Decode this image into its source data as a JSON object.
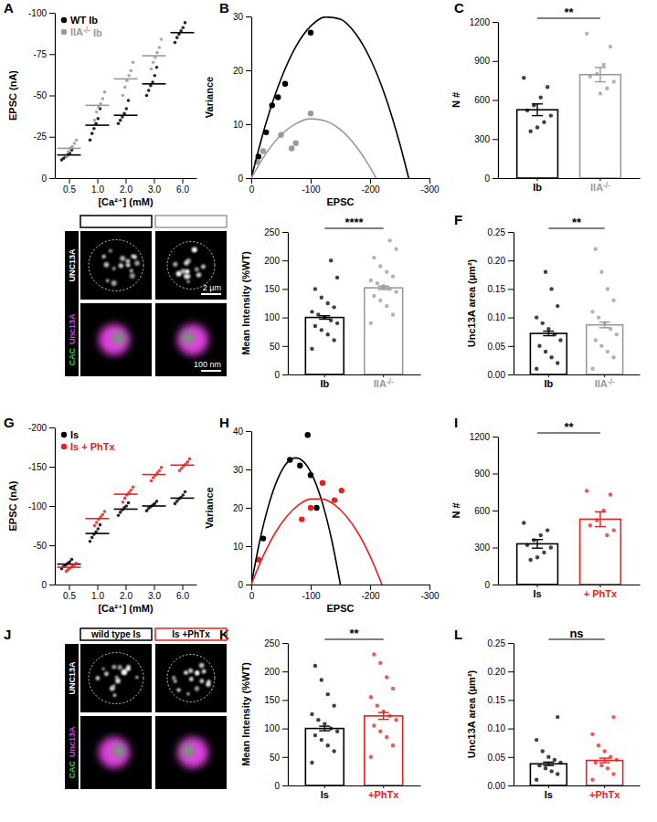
{
  "chart_data": [
    {
      "panel": "A",
      "type": "dot",
      "x_label": "[Ca²⁺] (mM)",
      "y_label": "EPSC (nA)",
      "categories": [
        "0.5",
        "1.0",
        "2.0",
        "3.0",
        "6.0"
      ],
      "ylim": [
        0,
        -100
      ],
      "yticks": [
        0,
        -25,
        -50,
        -75,
        -100
      ],
      "legend": "top-left",
      "series": [
        {
          "name": "WT Ib",
          "color": "#000000",
          "values": [
            -14,
            -32,
            -38,
            -57,
            -88
          ],
          "points": [
            [
              -11,
              -12,
              -13,
              -14,
              -15,
              -17
            ],
            [
              -23,
              -27,
              -30,
              -33,
              -36,
              -42
            ],
            [
              -33,
              -35,
              -37,
              -39,
              -42,
              -47
            ],
            [
              -50,
              -53,
              -56,
              -58,
              -62,
              -67
            ],
            [
              -82,
              -85,
              -87,
              -89,
              -91,
              -94
            ]
          ]
        },
        {
          "name": "IIA-/- Ib",
          "color": "#9a9a9a",
          "values": [
            -18,
            -44,
            -60,
            -74,
            null
          ],
          "points": [
            [
              -13,
              -16,
              -18,
              -19,
              -21,
              -23
            ],
            [
              -35,
              -40,
              -43,
              -45,
              -48,
              -52
            ],
            [
              -50,
              -55,
              -59,
              -62,
              -65,
              -70
            ],
            [
              -66,
              -70,
              -73,
              -76,
              -79,
              -84
            ],
            []
          ]
        }
      ]
    },
    {
      "panel": "B",
      "type": "scatter",
      "x_label": "EPSC",
      "y_label": "Variance",
      "xlim": [
        0,
        -300
      ],
      "xticks": [
        0,
        -100,
        -200,
        -300
      ],
      "ylim": [
        0,
        30
      ],
      "yticks": [
        0,
        10,
        20,
        30
      ],
      "series": [
        {
          "type": "scatter",
          "color": "#000000",
          "x": [
            -12,
            -25,
            -35,
            -45,
            -57,
            -100
          ],
          "values": [
            4,
            8.5,
            13.5,
            15,
            17.5,
            27
          ]
        },
        {
          "type": "scatter",
          "color": "#9a9a9a",
          "x": [
            -10,
            -20,
            -50,
            -68,
            -75,
            -100
          ],
          "values": [
            3,
            5,
            8,
            5.5,
            6.5,
            12
          ]
        },
        {
          "type": "line",
          "color": "#000000",
          "x": [
            0,
            -25,
            -50,
            -75,
            -100,
            -125,
            -150,
            -175,
            -200,
            -225,
            -250,
            -265
          ],
          "values": [
            0,
            10.3,
            18.4,
            24.4,
            28.2,
            29.9,
            29.5,
            26.9,
            22.2,
            15.4,
            6.4,
            0
          ]
        },
        {
          "type": "line",
          "color": "#9a9a9a",
          "x": [
            0,
            -25,
            -50,
            -75,
            -100,
            -125,
            -150,
            -175,
            -200,
            -210
          ],
          "values": [
            0,
            4.6,
            8.0,
            10.1,
            11.0,
            10.6,
            9.0,
            6.1,
            2.0,
            0
          ]
        }
      ]
    },
    {
      "panel": "C",
      "type": "bar",
      "y_label": "N #",
      "categories": [
        "Ib",
        "IIA-/-"
      ],
      "values": [
        525,
        795
      ],
      "errors": [
        45,
        55
      ],
      "colors": [
        "#000000",
        "#9a9a9a"
      ],
      "points": [
        [
          770,
          700,
          620,
          560,
          520,
          480,
          430,
          390,
          360
        ],
        [
          1110,
          1010,
          870,
          800,
          780,
          740,
          690,
          650
        ]
      ],
      "annotation": "**",
      "ylim": [
        0,
        1200
      ],
      "yticks": [
        0,
        300,
        600,
        900,
        1200
      ]
    },
    {
      "type": "bar",
      "y_label": "Mean Intensity (%WT)",
      "categories": [
        "Ib",
        "IIA-/-"
      ],
      "values": [
        100,
        152
      ],
      "errors": [
        3,
        3
      ],
      "colors": [
        "#000000",
        "#9a9a9a"
      ],
      "points": [
        [
          45,
          60,
          70,
          78,
          85,
          90,
          95,
          100,
          105,
          110,
          118,
          125,
          135,
          150,
          170,
          200
        ],
        [
          90,
          105,
          120,
          130,
          138,
          145,
          150,
          155,
          160,
          165,
          172,
          180,
          190,
          205,
          220,
          235
        ]
      ],
      "annotation": "****",
      "ylim": [
        0,
        250
      ],
      "yticks": [
        0,
        50,
        100,
        150,
        200,
        250
      ]
    },
    {
      "panel": "F",
      "type": "bar",
      "y_label": "Unc13A area (µm²)",
      "categories": [
        "Ib",
        "IIA-/-"
      ],
      "values": [
        0.072,
        0.087
      ],
      "errors": [
        0.004,
        0.005
      ],
      "colors": [
        "#000000",
        "#9a9a9a"
      ],
      "points": [
        [
          0.01,
          0.02,
          0.03,
          0.04,
          0.05,
          0.06,
          0.07,
          0.08,
          0.09,
          0.1,
          0.12,
          0.15,
          0.18
        ],
        [
          0.01,
          0.03,
          0.04,
          0.05,
          0.06,
          0.07,
          0.08,
          0.09,
          0.1,
          0.11,
          0.13,
          0.15,
          0.18,
          0.22
        ]
      ],
      "annotation": "**",
      "ylim": [
        0,
        0.25
      ],
      "yticks": [
        {
          "value": 0,
          "label": "0.00"
        },
        {
          "value": 0.05,
          "label": "0.05"
        },
        {
          "value": 0.1,
          "label": "0.10"
        },
        {
          "value": 0.15,
          "label": "0.15"
        },
        {
          "value": 0.2,
          "label": "0.20"
        },
        {
          "value": 0.25,
          "label": "0.25"
        }
      ]
    },
    {
      "panel": "G",
      "type": "dot",
      "x_label": "[Ca²⁺] (mM)",
      "y_label": "EPSC (nA)",
      "categories": [
        "0.5",
        "1.0",
        "2.0",
        "3.0",
        "6.0"
      ],
      "ylim": [
        0,
        -200
      ],
      "yticks": [
        0,
        -50,
        -100,
        -150,
        -200
      ],
      "legend": "top-left",
      "series": [
        {
          "name": "Is",
          "color": "#000000",
          "values": [
            -26,
            -65,
            -96,
            -100,
            -110
          ],
          "points": [
            [
              -20,
              -23,
              -25,
              -27,
              -29,
              -32
            ],
            [
              -55,
              -60,
              -64,
              -67,
              -71,
              -76
            ],
            [
              -88,
              -92,
              -95,
              -98,
              -100,
              -104
            ],
            [
              -94,
              -97,
              -99,
              -101,
              -103,
              -106
            ],
            [
              -103,
              -106,
              -109,
              -111,
              -114,
              -118
            ]
          ]
        },
        {
          "name": "Is + PhTx",
          "color": "#e8211f",
          "values": [
            -22,
            -84,
            -115,
            -140,
            -152
          ],
          "points": [
            [
              -17,
              -19,
              -21,
              -23,
              -25,
              -27
            ],
            [
              -75,
              -79,
              -83,
              -86,
              -89,
              -93
            ],
            [
              -105,
              -110,
              -114,
              -117,
              -120,
              -124
            ],
            [
              -132,
              -136,
              -139,
              -142,
              -145,
              -149
            ],
            [
              -145,
              -148,
              -151,
              -153,
              -156,
              -160
            ]
          ]
        }
      ]
    },
    {
      "panel": "H",
      "type": "scatter",
      "x_label": "EPSC",
      "y_label": "Variance",
      "xlim": [
        0,
        -300
      ],
      "xticks": [
        0,
        -100,
        -200,
        -300
      ],
      "ylim": [
        0,
        40
      ],
      "yticks": [
        0,
        10,
        20,
        30,
        40
      ],
      "series": [
        {
          "type": "scatter",
          "color": "#000000",
          "x": [
            -20,
            -65,
            -82,
            -95,
            -100,
            -110
          ],
          "values": [
            12,
            32.5,
            31,
            39,
            28.5,
            20
          ]
        },
        {
          "type": "scatter",
          "color": "#e8211f",
          "x": [
            -12,
            -85,
            -100,
            -120,
            -140,
            -152
          ],
          "values": [
            6.5,
            17,
            20,
            26.5,
            22,
            24.5
          ]
        },
        {
          "type": "line",
          "color": "#000000",
          "x": [
            0,
            -15,
            -30,
            -45,
            -60,
            -75,
            -90,
            -105,
            -120,
            -135,
            -150
          ],
          "values": [
            0,
            11.9,
            21.1,
            27.7,
            31.7,
            33,
            31.7,
            27.7,
            21.1,
            11.9,
            0
          ]
        },
        {
          "type": "line",
          "color": "#e8211f",
          "x": [
            0,
            -20,
            -40,
            -60,
            -80,
            -100,
            -120,
            -140,
            -160,
            -180,
            -200,
            -220
          ],
          "values": [
            0,
            7.4,
            13.4,
            17.8,
            20.8,
            22.3,
            22.3,
            20.8,
            17.8,
            13.4,
            7.4,
            0
          ]
        }
      ]
    },
    {
      "panel": "I",
      "type": "bar",
      "y_label": "N #",
      "categories": [
        "Is",
        "+ PhTx"
      ],
      "values": [
        330,
        530
      ],
      "errors": [
        35,
        60
      ],
      "colors": [
        "#000000",
        "#e8211f"
      ],
      "points": [
        [
          500,
          440,
          400,
          360,
          320,
          300,
          260,
          220,
          200
        ],
        [
          760,
          730,
          600,
          520,
          480,
          440,
          400
        ]
      ],
      "annotation": "**",
      "ylim": [
        0,
        1200
      ],
      "yticks": [
        0,
        300,
        600,
        900,
        1200
      ]
    },
    {
      "panel": "K",
      "type": "bar",
      "y_label": "Mean Intensity (%WT)",
      "categories": [
        "Is",
        "+PhTx"
      ],
      "values": [
        100,
        122
      ],
      "errors": [
        4,
        6
      ],
      "colors": [
        "#000000",
        "#e8211f"
      ],
      "points": [
        [
          40,
          60,
          70,
          80,
          88,
          95,
          100,
          108,
          115,
          125,
          140,
          160,
          185,
          210
        ],
        [
          50,
          70,
          85,
          95,
          105,
          115,
          122,
          130,
          140,
          155,
          170,
          190,
          215,
          230
        ]
      ],
      "annotation": "**",
      "ylim": [
        0,
        250
      ],
      "yticks": [
        0,
        50,
        100,
        150,
        200,
        250
      ]
    },
    {
      "panel": "L",
      "type": "bar",
      "y_label": "Unc13A area (µm²)",
      "categories": [
        "Is",
        "+PhTx"
      ],
      "values": [
        0.038,
        0.044
      ],
      "errors": [
        0.003,
        0.004
      ],
      "colors": [
        "#000000",
        "#e8211f"
      ],
      "points": [
        [
          0.01,
          0.02,
          0.025,
          0.03,
          0.035,
          0.04,
          0.045,
          0.05,
          0.06,
          0.08,
          0.12
        ],
        [
          0.01,
          0.02,
          0.03,
          0.035,
          0.04,
          0.045,
          0.05,
          0.06,
          0.07,
          0.09,
          0.12
        ]
      ],
      "annotation": "ns",
      "ylim": [
        0,
        0.25
      ],
      "yticks": [
        {
          "value": 0,
          "label": "0.00"
        },
        {
          "value": 0.05,
          "label": "0.05"
        },
        {
          "value": 0.1,
          "label": "0.10"
        },
        {
          "value": 0.15,
          "label": "0.15"
        },
        {
          "value": 0.2,
          "label": "0.20"
        },
        {
          "value": 0.25,
          "label": "0.25"
        }
      ]
    }
  ],
  "images": [
    {
      "colors": [
        "#000000",
        "#9a9a9a"
      ],
      "row_labels": [
        [
          {
            "text": "UNC13A",
            "color": "#ffffff"
          }
        ],
        [
          {
            "text": "CAC",
            "color": "#2fd12f"
          },
          {
            "text": "Unc13A",
            "color": "#e040e0"
          }
        ]
      ],
      "scale_bars": [
        "2 µm",
        "100 nm"
      ]
    },
    {
      "panel": "J",
      "headers": [
        "wild type Is",
        "Is +PhTx"
      ],
      "colors": [
        "#000000",
        "#e8211f"
      ],
      "row_labels": [
        [
          {
            "text": "UNC13A",
            "color": "#ffffff"
          }
        ],
        [
          {
            "text": "CAC",
            "color": "#2fd12f"
          },
          {
            "text": "Unc13A",
            "color": "#e040e0"
          }
        ]
      ]
    }
  ]
}
